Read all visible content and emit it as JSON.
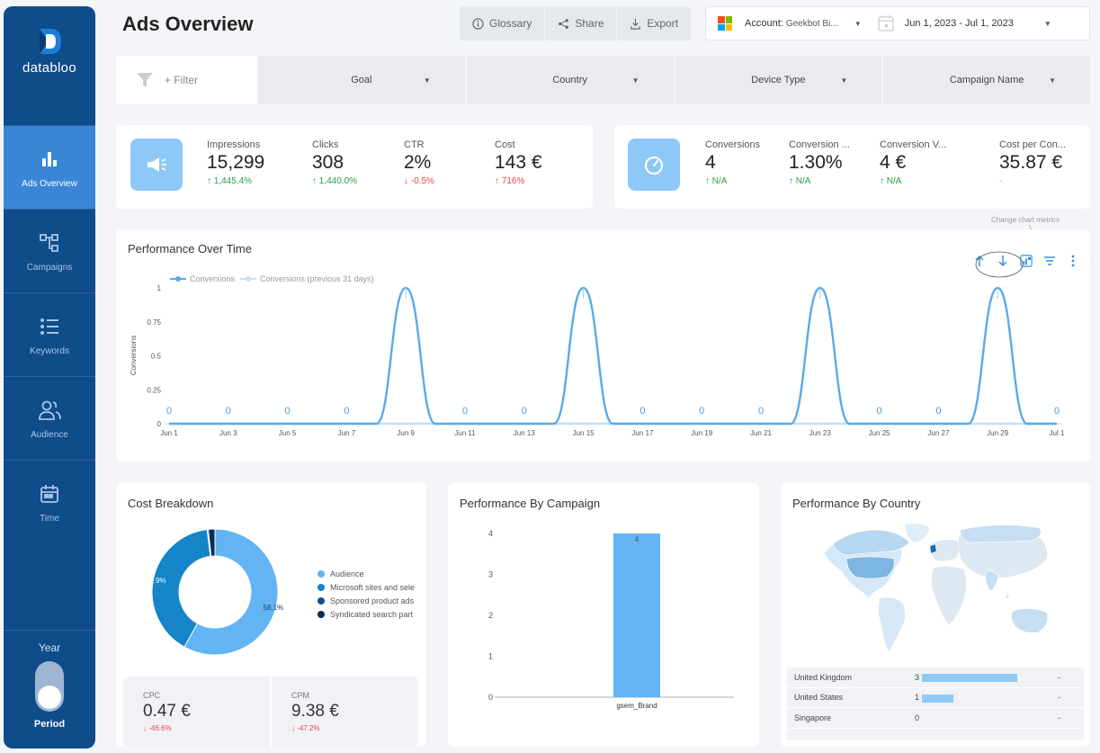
{
  "brand": {
    "name": "databloo"
  },
  "sidebar": {
    "items": [
      {
        "label": "Ads Overview",
        "icon": "bar-chart-icon",
        "active": true
      },
      {
        "label": "Campaigns",
        "icon": "hierarchy-icon",
        "active": false
      },
      {
        "label": "Keywords",
        "icon": "list-icon",
        "active": false
      },
      {
        "label": "Audience",
        "icon": "users-icon",
        "active": false
      },
      {
        "label": "Time",
        "icon": "calendar-icon",
        "active": false
      }
    ],
    "period": {
      "top_label": "Year",
      "bottom_label": "Period"
    }
  },
  "header": {
    "title": "Ads Overview",
    "buttons": {
      "glossary": "Glossary",
      "share": "Share",
      "export": "Export"
    },
    "account_label": "Account:",
    "account_value": "Geekbot Bi...",
    "date_range": "Jun 1, 2023 - Jul 1, 2023"
  },
  "filters": {
    "add_filter": "+ Filter",
    "dropdowns": [
      "Goal",
      "Country",
      "Device Type",
      "Campaign Name"
    ]
  },
  "kpis_left": [
    {
      "label": "Impressions",
      "value": "15,299",
      "change": "1,445.4%",
      "dir": "up"
    },
    {
      "label": "Clicks",
      "value": "308",
      "change": "1,440.0%",
      "dir": "up"
    },
    {
      "label": "CTR",
      "value": "2%",
      "change": "-0.5%",
      "dir": "down"
    },
    {
      "label": "Cost",
      "value": "143 €",
      "change": "716%",
      "dir": "down"
    }
  ],
  "kpis_right": [
    {
      "label": "Conversions",
      "value": "4",
      "change": "N/A",
      "dir": "up"
    },
    {
      "label": "Conversion ...",
      "value": "1.30%",
      "change": "N/A",
      "dir": "up"
    },
    {
      "label": "Conversion V...",
      "value": "4 €",
      "change": "N/A",
      "dir": "up"
    },
    {
      "label": "Cost per Con...",
      "value": "35.87 €",
      "change": "-",
      "dir": "none"
    }
  ],
  "performance_over_time": {
    "title": "Performance Over Time",
    "hint": "Change chart metrics",
    "chart_data": {
      "type": "line",
      "ylabel": "Conversions",
      "ylim": [
        0,
        1
      ],
      "yticks": [
        "0",
        "0.25",
        "0.5",
        "0.75",
        "1"
      ],
      "x_tick_labels": [
        "Jun 1",
        "Jun 3",
        "Jun 5",
        "Jun 7",
        "Jun 9",
        "Jun 11",
        "Jun 13",
        "Jun 15",
        "Jun 17",
        "Jun 19",
        "Jun 21",
        "Jun 23",
        "Jun 25",
        "Jun 27",
        "Jun 29",
        "Jul 1"
      ],
      "x": [
        "Jun 1",
        "Jun 2",
        "Jun 3",
        "Jun 4",
        "Jun 5",
        "Jun 6",
        "Jun 7",
        "Jun 8",
        "Jun 9",
        "Jun 10",
        "Jun 11",
        "Jun 12",
        "Jun 13",
        "Jun 14",
        "Jun 15",
        "Jun 16",
        "Jun 17",
        "Jun 18",
        "Jun 19",
        "Jun 20",
        "Jun 21",
        "Jun 22",
        "Jun 23",
        "Jun 24",
        "Jun 25",
        "Jun 26",
        "Jun 27",
        "Jun 28",
        "Jun 29",
        "Jun 30",
        "Jul 1"
      ],
      "series": [
        {
          "name": "Conversions",
          "color": "#5aaae8",
          "values": [
            0,
            0,
            0,
            0,
            0,
            0,
            0,
            0,
            1,
            0,
            0,
            0,
            0,
            0,
            1,
            0,
            0,
            0,
            0,
            0,
            0,
            0,
            1,
            0,
            0,
            0,
            0,
            0,
            1,
            0,
            0
          ]
        },
        {
          "name": "Conversions (previous 31 days)",
          "color": "#bfe0f8",
          "values": [
            0,
            0,
            0,
            0,
            0,
            0,
            0,
            0,
            0,
            0,
            0,
            0,
            0,
            0,
            0,
            0,
            0,
            0,
            0,
            0,
            0,
            0,
            0,
            0,
            0,
            0,
            0,
            0,
            0,
            0,
            0
          ]
        }
      ]
    }
  },
  "cost_breakdown": {
    "title": "Cost Breakdown",
    "chart_data": {
      "type": "pie",
      "categories": [
        "Audience",
        "Microsoft sites and sele",
        "Sponsored product ads",
        "Syndicated search part"
      ],
      "values": [
        58.1,
        39.9,
        0.3,
        1.7
      ],
      "labels": [
        "58.1%",
        "39.9%",
        "",
        ""
      ],
      "colors": [
        "#62b4f3",
        "#1584c9",
        "#124f8c",
        "#0a2a5a"
      ]
    },
    "sub_kpis": [
      {
        "label": "CPC",
        "value": "0.47 €",
        "change": "-46.6%"
      },
      {
        "label": "CPM",
        "value": "9.38 €",
        "change": "-47.2%"
      }
    ]
  },
  "performance_by_campaign": {
    "title": "Performance By Campaign",
    "chart_data": {
      "type": "bar",
      "categories": [
        "gsem_Brand"
      ],
      "values": [
        4
      ],
      "data_labels": [
        "4"
      ],
      "ylim": [
        0,
        4
      ],
      "yticks": [
        "0",
        "1",
        "2",
        "3",
        "4"
      ],
      "color": "#64b5f6"
    }
  },
  "performance_by_country": {
    "title": "Performance By Country",
    "rows": [
      {
        "country": "United Kingdom",
        "value": "3",
        "fraction": 1.0,
        "trend": "-"
      },
      {
        "country": "United States",
        "value": "1",
        "fraction": 0.33,
        "trend": "-"
      },
      {
        "country": "Singapore",
        "value": "0",
        "fraction": 0,
        "trend": "-"
      }
    ]
  }
}
